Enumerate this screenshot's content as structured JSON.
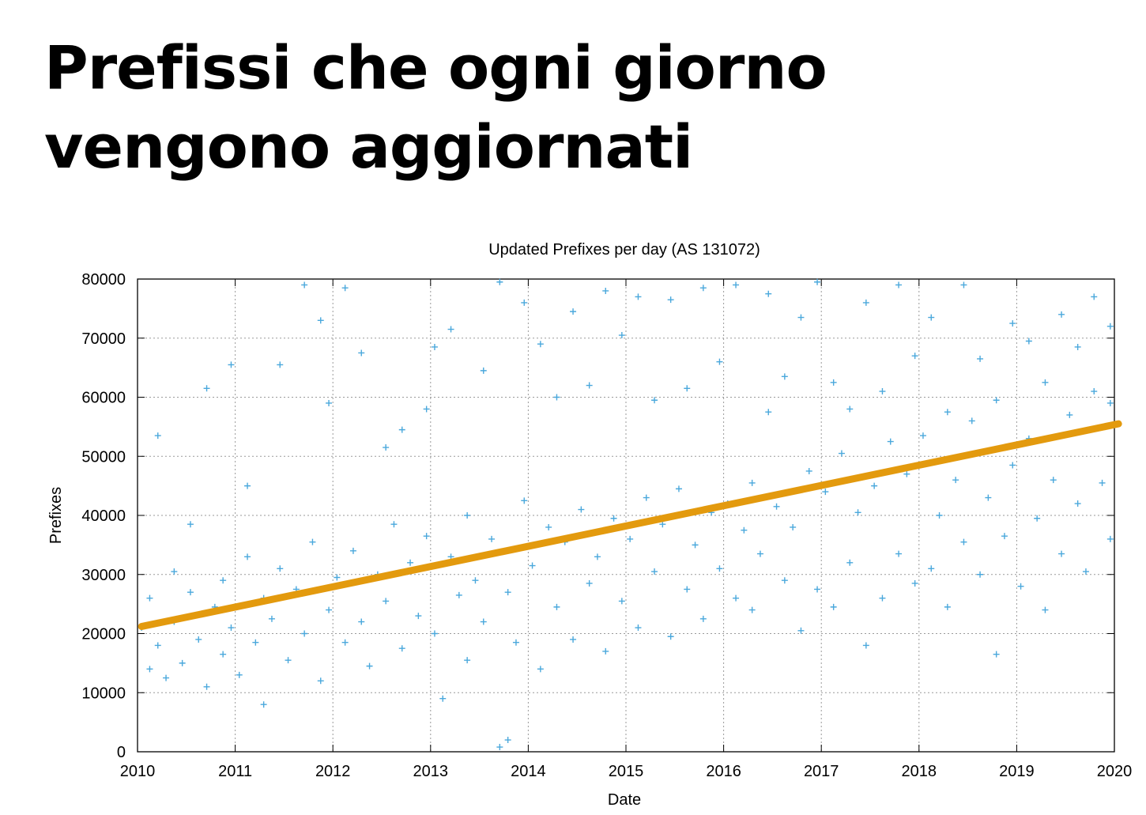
{
  "slide": {
    "title": "Prefissi che ogni giorno vengono aggiornati"
  },
  "chart_data": {
    "type": "scatter",
    "title": "Updated Prefixes per day (AS 131072)",
    "xlabel": "Date",
    "ylabel": "Prefixes",
    "xlim": [
      "2010",
      "2020"
    ],
    "ylim": [
      0,
      80000
    ],
    "x_ticks": [
      "2010",
      "2011",
      "2012",
      "2013",
      "2014",
      "2015",
      "2016",
      "2017",
      "2018",
      "2019",
      "2020"
    ],
    "y_ticks": [
      "0",
      "10000",
      "20000",
      "30000",
      "40000",
      "50000",
      "60000",
      "70000",
      "80000"
    ],
    "grid": true,
    "legend": "none",
    "series": [
      {
        "kind": "scatter",
        "marker": "+",
        "color": "#4aa8dc",
        "points": [
          [
            "2010-01",
            21000
          ],
          [
            "2010-02",
            14000
          ],
          [
            "2010-02",
            26000
          ],
          [
            "2010-03",
            53500
          ],
          [
            "2010-03",
            18000
          ],
          [
            "2010-04",
            12500
          ],
          [
            "2010-05",
            30500
          ],
          [
            "2010-05",
            22000
          ],
          [
            "2010-06",
            15000
          ],
          [
            "2010-07",
            27000
          ],
          [
            "2010-07",
            38500
          ],
          [
            "2010-08",
            19000
          ],
          [
            "2010-09",
            11000
          ],
          [
            "2010-09",
            61500
          ],
          [
            "2010-10",
            24500
          ],
          [
            "2010-11",
            16500
          ],
          [
            "2010-11",
            29000
          ],
          [
            "2010-12",
            65500
          ],
          [
            "2010-12",
            21000
          ],
          [
            "2011-01",
            13000
          ],
          [
            "2011-02",
            33000
          ],
          [
            "2011-02",
            45000
          ],
          [
            "2011-03",
            18500
          ],
          [
            "2011-04",
            26000
          ],
          [
            "2011-04",
            8000
          ],
          [
            "2011-05",
            22500
          ],
          [
            "2011-06",
            65500
          ],
          [
            "2011-06",
            31000
          ],
          [
            "2011-07",
            15500
          ],
          [
            "2011-08",
            27500
          ],
          [
            "2011-09",
            20000
          ],
          [
            "2011-09",
            79000
          ],
          [
            "2011-10",
            35500
          ],
          [
            "2011-11",
            12000
          ],
          [
            "2011-11",
            73000
          ],
          [
            "2011-12",
            24000
          ],
          [
            "2011-12",
            59000
          ],
          [
            "2012-01",
            29500
          ],
          [
            "2012-02",
            18500
          ],
          [
            "2012-02",
            78500
          ],
          [
            "2012-03",
            34000
          ],
          [
            "2012-04",
            22000
          ],
          [
            "2012-04",
            67500
          ],
          [
            "2012-05",
            14500
          ],
          [
            "2012-06",
            30000
          ],
          [
            "2012-07",
            25500
          ],
          [
            "2012-07",
            51500
          ],
          [
            "2012-08",
            38500
          ],
          [
            "2012-09",
            17500
          ],
          [
            "2012-09",
            54500
          ],
          [
            "2012-10",
            32000
          ],
          [
            "2012-11",
            23000
          ],
          [
            "2012-12",
            58000
          ],
          [
            "2012-12",
            36500
          ],
          [
            "2013-01",
            20000
          ],
          [
            "2013-01",
            68500
          ],
          [
            "2013-02",
            9000
          ],
          [
            "2013-03",
            33000
          ],
          [
            "2013-03",
            71500
          ],
          [
            "2013-04",
            26500
          ],
          [
            "2013-05",
            40000
          ],
          [
            "2013-05",
            15500
          ],
          [
            "2013-06",
            29000
          ],
          [
            "2013-07",
            64500
          ],
          [
            "2013-07",
            22000
          ],
          [
            "2013-08",
            36000
          ],
          [
            "2013-09",
            800
          ],
          [
            "2013-09",
            79500
          ],
          [
            "2013-10",
            27000
          ],
          [
            "2013-10",
            2000
          ],
          [
            "2013-11",
            18500
          ],
          [
            "2013-12",
            42500
          ],
          [
            "2013-12",
            76000
          ],
          [
            "2014-01",
            31500
          ],
          [
            "2014-02",
            14000
          ],
          [
            "2014-02",
            69000
          ],
          [
            "2014-03",
            38000
          ],
          [
            "2014-04",
            24500
          ],
          [
            "2014-04",
            60000
          ],
          [
            "2014-05",
            35500
          ],
          [
            "2014-06",
            19000
          ],
          [
            "2014-06",
            74500
          ],
          [
            "2014-07",
            41000
          ],
          [
            "2014-08",
            28500
          ],
          [
            "2014-08",
            62000
          ],
          [
            "2014-09",
            33000
          ],
          [
            "2014-10",
            17000
          ],
          [
            "2014-10",
            78000
          ],
          [
            "2014-11",
            39500
          ],
          [
            "2014-12",
            25500
          ],
          [
            "2014-12",
            70500
          ],
          [
            "2015-01",
            36000
          ],
          [
            "2015-02",
            21000
          ],
          [
            "2015-02",
            77000
          ],
          [
            "2015-03",
            43000
          ],
          [
            "2015-04",
            30500
          ],
          [
            "2015-04",
            59500
          ],
          [
            "2015-05",
            38500
          ],
          [
            "2015-06",
            19500
          ],
          [
            "2015-06",
            76500
          ],
          [
            "2015-07",
            44500
          ],
          [
            "2015-08",
            27500
          ],
          [
            "2015-08",
            61500
          ],
          [
            "2015-09",
            35000
          ],
          [
            "2015-10",
            22500
          ],
          [
            "2015-10",
            78500
          ],
          [
            "2015-11",
            40500
          ],
          [
            "2015-12",
            31000
          ],
          [
            "2015-12",
            66000
          ],
          [
            "2016-01",
            42000
          ],
          [
            "2016-02",
            26000
          ],
          [
            "2016-02",
            79000
          ],
          [
            "2016-03",
            37500
          ],
          [
            "2016-04",
            45500
          ],
          [
            "2016-04",
            24000
          ],
          [
            "2016-05",
            33500
          ],
          [
            "2016-06",
            57500
          ],
          [
            "2016-06",
            77500
          ],
          [
            "2016-07",
            41500
          ],
          [
            "2016-08",
            29000
          ],
          [
            "2016-08",
            63500
          ],
          [
            "2016-09",
            38000
          ],
          [
            "2016-10",
            20500
          ],
          [
            "2016-10",
            73500
          ],
          [
            "2016-11",
            47500
          ],
          [
            "2016-12",
            27500
          ],
          [
            "2016-12",
            79500
          ],
          [
            "2017-01",
            44000
          ],
          [
            "2017-02",
            24500
          ],
          [
            "2017-02",
            62500
          ],
          [
            "2017-03",
            50500
          ],
          [
            "2017-04",
            32000
          ],
          [
            "2017-04",
            58000
          ],
          [
            "2017-05",
            40500
          ],
          [
            "2017-06",
            18000
          ],
          [
            "2017-06",
            76000
          ],
          [
            "2017-07",
            45000
          ],
          [
            "2017-08",
            26000
          ],
          [
            "2017-08",
            61000
          ],
          [
            "2017-09",
            52500
          ],
          [
            "2017-10",
            33500
          ],
          [
            "2017-10",
            79000
          ],
          [
            "2017-11",
            47000
          ],
          [
            "2017-12",
            28500
          ],
          [
            "2017-12",
            67000
          ],
          [
            "2018-01",
            53500
          ],
          [
            "2018-02",
            31000
          ],
          [
            "2018-02",
            73500
          ],
          [
            "2018-03",
            40000
          ],
          [
            "2018-04",
            57500
          ],
          [
            "2018-04",
            24500
          ],
          [
            "2018-05",
            46000
          ],
          [
            "2018-06",
            35500
          ],
          [
            "2018-06",
            79000
          ],
          [
            "2018-07",
            56000
          ],
          [
            "2018-08",
            30000
          ],
          [
            "2018-08",
            66500
          ],
          [
            "2018-09",
            43000
          ],
          [
            "2018-10",
            59500
          ],
          [
            "2018-10",
            16500
          ],
          [
            "2018-11",
            36500
          ],
          [
            "2018-12",
            72500
          ],
          [
            "2018-12",
            48500
          ],
          [
            "2019-01",
            28000
          ],
          [
            "2019-02",
            53000
          ],
          [
            "2019-02",
            69500
          ],
          [
            "2019-03",
            39500
          ],
          [
            "2019-04",
            62500
          ],
          [
            "2019-04",
            24000
          ],
          [
            "2019-05",
            46000
          ],
          [
            "2019-06",
            74000
          ],
          [
            "2019-06",
            33500
          ],
          [
            "2019-07",
            57000
          ],
          [
            "2019-08",
            42000
          ],
          [
            "2019-08",
            68500
          ],
          [
            "2019-09",
            30500
          ],
          [
            "2019-10",
            61000
          ],
          [
            "2019-10",
            77000
          ],
          [
            "2019-11",
            45500
          ],
          [
            "2019-12",
            72000
          ],
          [
            "2019-12",
            36000
          ],
          [
            "2019-12",
            59000
          ]
        ]
      },
      {
        "kind": "trend",
        "marker": "line",
        "color": "#e39a0e",
        "points": [
          [
            "2010-01",
            21200
          ],
          [
            "2020-01",
            55500
          ]
        ]
      }
    ]
  }
}
